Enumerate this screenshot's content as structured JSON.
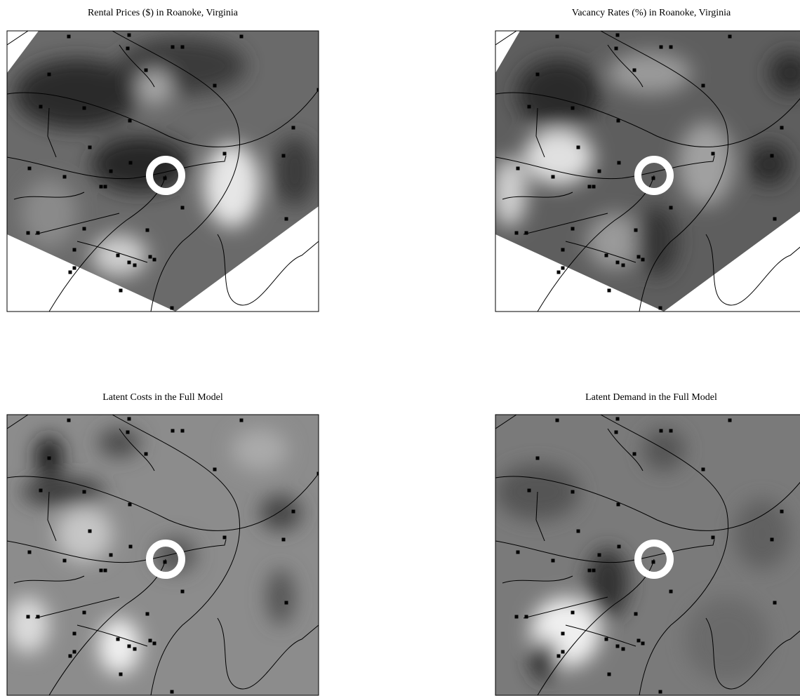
{
  "panels": [
    {
      "title": "Rental Prices ($) in Roanoke, Virginia"
    },
    {
      "title": "Vacancy Rates (%) in Roanoke, Virginia"
    },
    {
      "title": "Latent Costs in the Full Model"
    },
    {
      "title": "Latent Demand in the Full Model"
    }
  ]
}
